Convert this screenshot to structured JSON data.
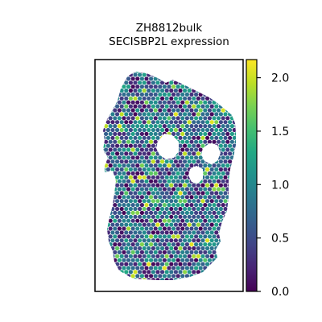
{
  "chart_data": {
    "type": "heatmap",
    "title": "ZH8812bulk",
    "subtitle": "SECISBP2L expression",
    "xlabel": "",
    "ylabel": "",
    "grid": false,
    "colormap": "viridis",
    "colorbar": {
      "vmin": 0.0,
      "vmax": 2.17,
      "ticks": [
        0.0,
        0.5,
        1.0,
        1.5,
        2.0
      ],
      "tick_labels": [
        "0.0",
        "0.5",
        "1.0",
        "1.5",
        "2.0"
      ],
      "position": "right"
    },
    "value_distribution": {
      "mostly_between": [
        0.2,
        1.3
      ],
      "sparse_high_values_up_to": 2.1
    }
  }
}
